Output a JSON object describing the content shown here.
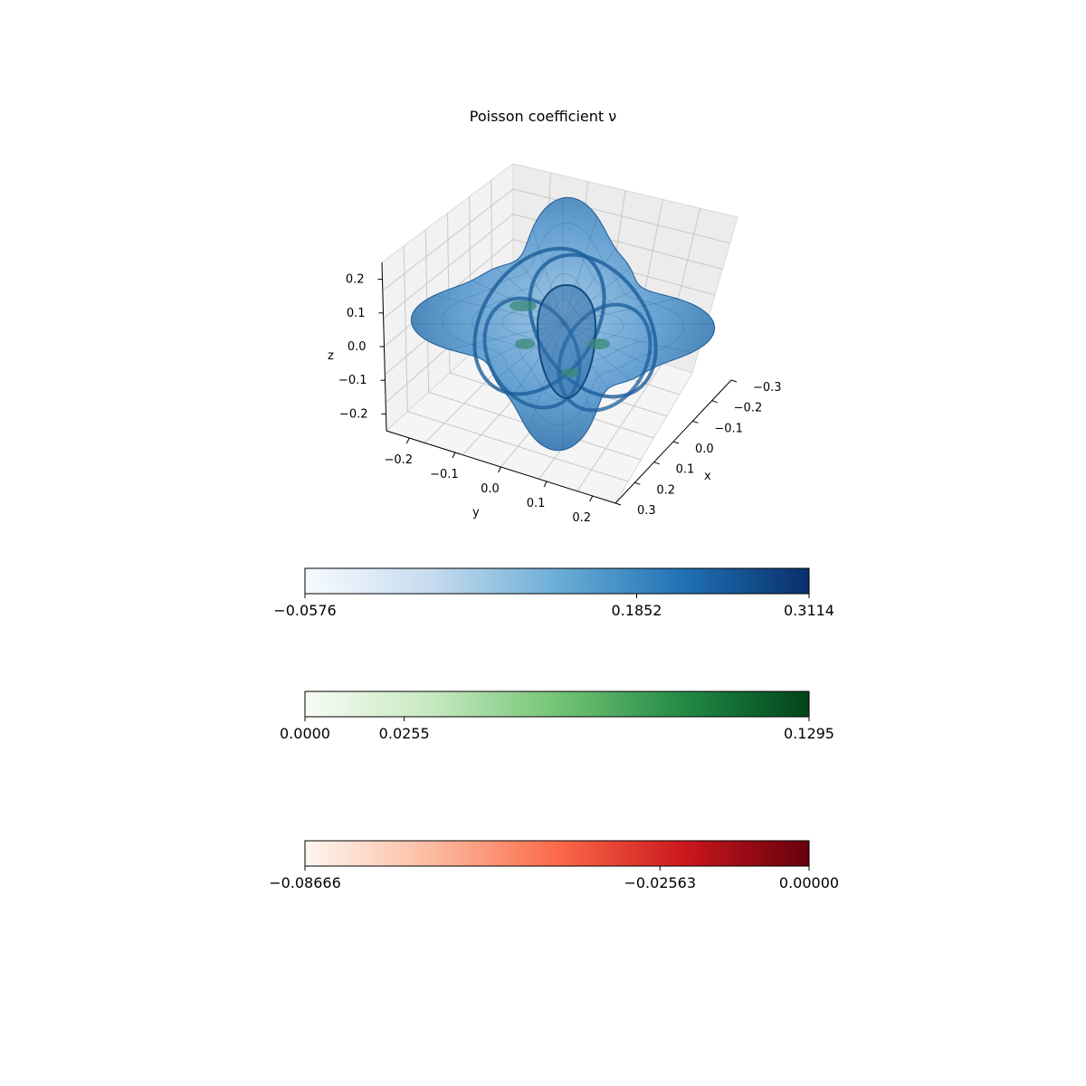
{
  "chart_data": {
    "type": "surface3d",
    "title": "Poisson coefficient ν",
    "axes": {
      "x": {
        "label": "x",
        "ticks": [
          "−0.3",
          "−0.2",
          "−0.1",
          "0.0",
          "0.1",
          "0.2",
          "0.3"
        ],
        "range": [
          -0.3,
          0.3
        ]
      },
      "y": {
        "label": "y",
        "ticks": [
          "−0.2",
          "−0.1",
          "0.0",
          "0.1",
          "0.2"
        ],
        "range": [
          -0.25,
          0.25
        ]
      },
      "z": {
        "label": "z",
        "ticks": [
          "0.2",
          "0.1",
          "0.0",
          "−0.1",
          "−0.2"
        ],
        "range": [
          -0.25,
          0.25
        ]
      }
    },
    "grid": true,
    "colorbars": [
      {
        "colormap": "Blues",
        "colors": [
          "#f7fbff",
          "#c6dbef",
          "#6baed6",
          "#2171b5",
          "#08306b"
        ],
        "ticks": [
          "−0.0576",
          "0.1852",
          "0.3114"
        ],
        "tick_values": [
          -0.0576,
          0.1852,
          0.3114
        ],
        "min": -0.0576,
        "max": 0.3114
      },
      {
        "colormap": "Greens",
        "colors": [
          "#f7fcf5",
          "#c7e9c0",
          "#74c476",
          "#238b45",
          "#00441b"
        ],
        "ticks": [
          "0.0000",
          "0.0255",
          "0.1295"
        ],
        "tick_values": [
          0.0,
          0.0255,
          0.1295
        ],
        "min": 0.0,
        "max": 0.1295
      },
      {
        "colormap": "Reds",
        "colors": [
          "#fff5f0",
          "#fcbba1",
          "#fb6a4a",
          "#cb181d",
          "#67000d"
        ],
        "ticks": [
          "−0.08666",
          "−0.02563",
          "0.00000"
        ],
        "tick_values": [
          -0.08666,
          -0.02563,
          0.0
        ],
        "min": -0.08666,
        "max": 0.0
      }
    ],
    "surface_color": "#4a8fc8",
    "inner_color": "#3a8a7a"
  }
}
